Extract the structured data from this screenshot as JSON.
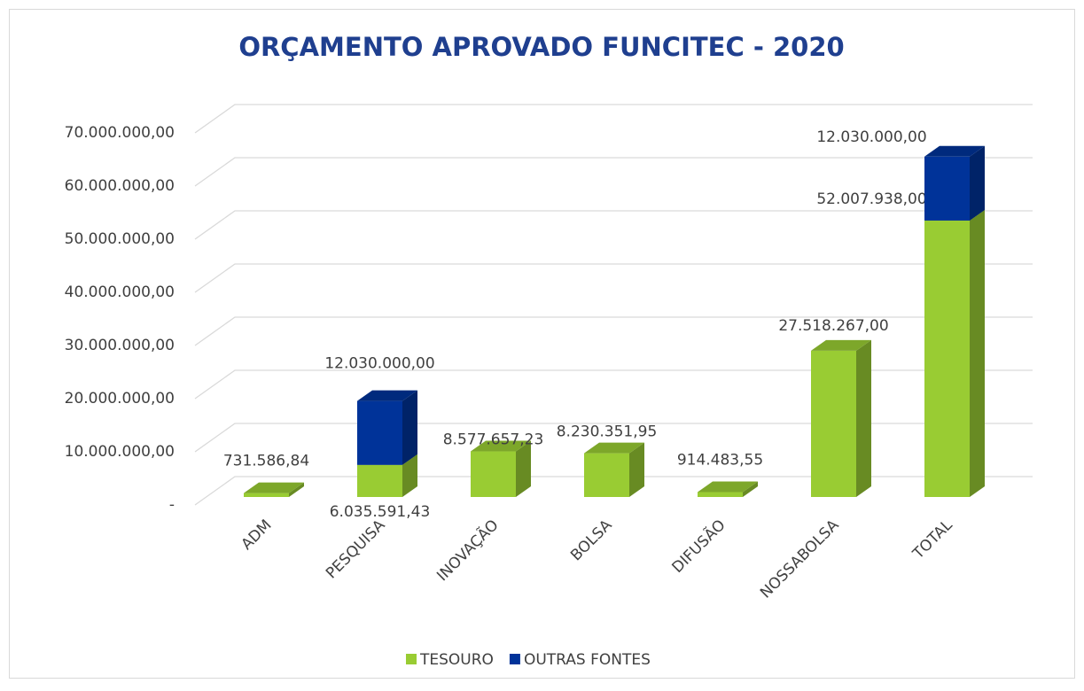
{
  "chart_data": {
    "type": "bar3d_stacked",
    "title": "ORÇAMENTO APROVADO FUNCITEC - 2020",
    "categories": [
      "ADM",
      "PESQUISA",
      "INOVAÇÃO",
      "BOLSA",
      "DIFUSÃO",
      "NOSSABOLSA",
      "TOTAL"
    ],
    "series": [
      {
        "name": "TESOURO",
        "color": "#99cc33",
        "values": [
          731586.84,
          6035591.43,
          8577657.23,
          8230351.95,
          914483.55,
          27518267,
          52007938
        ],
        "value_labels": [
          "731.586,84",
          "6.035.591,43",
          "8.577.657,23",
          "8.230.351,95",
          "914.483,55",
          "27.518.267,00",
          "52.007.938,00"
        ]
      },
      {
        "name": "OUTRAS FONTES",
        "color": "#003399",
        "values": [
          null,
          12030000,
          null,
          null,
          null,
          null,
          12030000
        ],
        "value_labels": [
          null,
          "12.030.000,00",
          null,
          null,
          null,
          null,
          "12.030.000,00"
        ]
      }
    ],
    "ylim": [
      0,
      70000000
    ],
    "yticks": [
      {
        "value": 0,
        "label": "-"
      },
      {
        "value": 10000000,
        "label": "10.000.000,00"
      },
      {
        "value": 20000000,
        "label": "20.000.000,00"
      },
      {
        "value": 30000000,
        "label": "30.000.000,00"
      },
      {
        "value": 40000000,
        "label": "40.000.000,00"
      },
      {
        "value": 50000000,
        "label": "50.000.000,00"
      },
      {
        "value": 60000000,
        "label": "60.000.000,00"
      },
      {
        "value": 70000000,
        "label": "70.000.000,00"
      }
    ],
    "grid": true,
    "legend": "bottom"
  }
}
